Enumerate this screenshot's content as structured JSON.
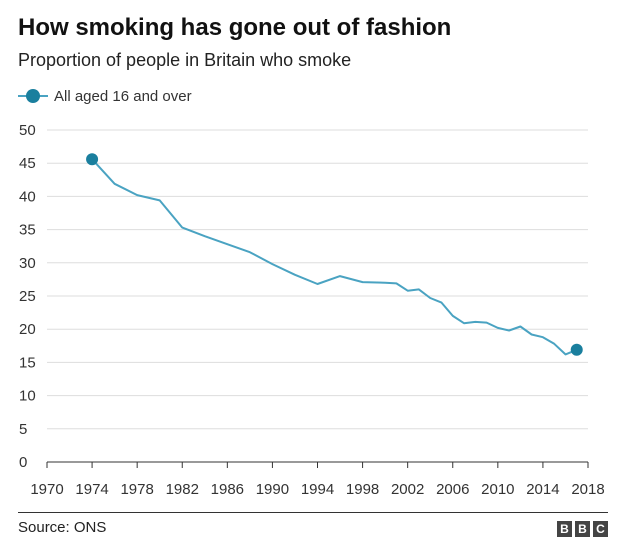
{
  "chart_data": {
    "type": "line",
    "title": "How smoking has gone out of fashion",
    "subtitle": "Proportion of people in Britain who smoke",
    "xlabel": "",
    "ylabel": "",
    "xlim": [
      1970,
      2018
    ],
    "ylim": [
      0,
      50
    ],
    "x_ticks": [
      "1970",
      "1974",
      "1978",
      "1982",
      "1986",
      "1990",
      "1994",
      "1998",
      "2002",
      "2006",
      "2010",
      "2014",
      "2018"
    ],
    "y_ticks": [
      "0",
      "5",
      "10",
      "15",
      "20",
      "25",
      "30",
      "35",
      "40",
      "45",
      "50"
    ],
    "grid": "horizontal",
    "legend_position": "top-left",
    "series": [
      {
        "name": "All aged 16 and over",
        "color": "#4aa3c2",
        "marker_color": "#1a7f9e",
        "x": [
          1974,
          1976,
          1978,
          1980,
          1982,
          1984,
          1986,
          1988,
          1990,
          1992,
          1994,
          1996,
          1998,
          2000,
          2001,
          2002,
          2003,
          2004,
          2005,
          2006,
          2007,
          2008,
          2009,
          2010,
          2011,
          2012,
          2013,
          2014,
          2015,
          2016,
          2017
        ],
        "y": [
          45.6,
          41.9,
          40.2,
          39.4,
          35.3,
          34.0,
          32.8,
          31.6,
          29.8,
          28.2,
          26.8,
          28.0,
          27.1,
          27.0,
          26.9,
          25.8,
          26.0,
          24.7,
          24.0,
          22.0,
          20.9,
          21.1,
          21.0,
          20.2,
          19.8,
          20.4,
          19.2,
          18.8,
          17.8,
          16.2,
          16.9
        ]
      }
    ],
    "highlight_points": [
      {
        "x": 1974,
        "y": 45.6
      },
      {
        "x": 2017,
        "y": 16.9
      }
    ]
  },
  "footer": {
    "source": "Source: ONS",
    "logo_letters": [
      "B",
      "B",
      "C"
    ]
  }
}
